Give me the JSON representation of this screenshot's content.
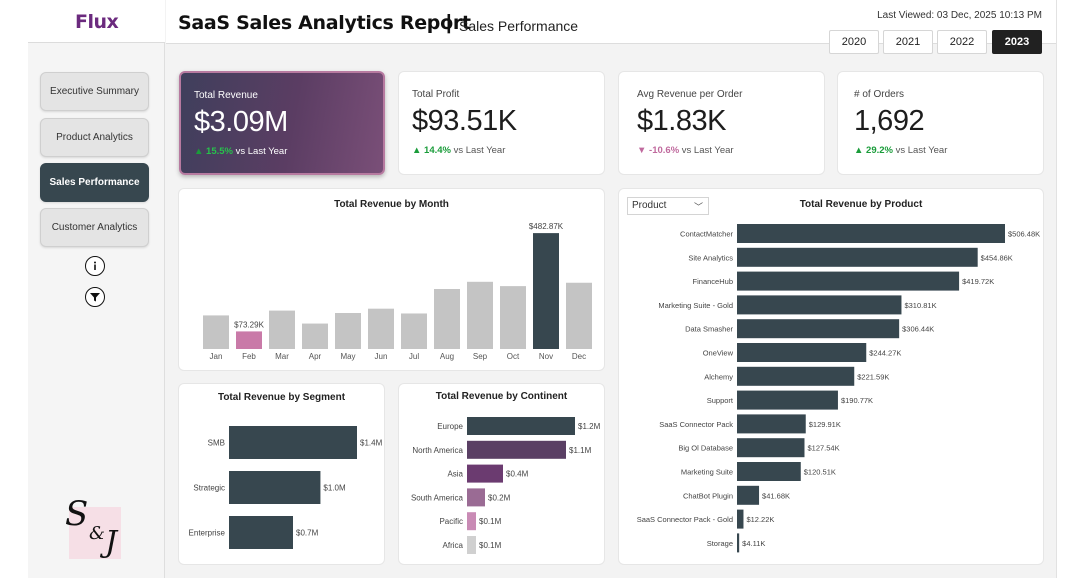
{
  "app": {
    "logo": "Flux"
  },
  "header": {
    "title": "SaaS Sales Analytics Report",
    "separator": "|",
    "subtitle": "Sales Performance",
    "last_viewed": "Last Viewed: 03 Dec, 2025 10:13 PM",
    "years": [
      "2020",
      "2021",
      "2022",
      "2023"
    ],
    "selected_year": "2023"
  },
  "sidebar": {
    "items": [
      {
        "label": "Executive Summary",
        "active": false
      },
      {
        "label": "Product Analytics",
        "active": false
      },
      {
        "label": "Sales Performance",
        "active": true
      },
      {
        "label": "Customer Analytics",
        "active": false
      }
    ],
    "info_icon": "info-icon",
    "filter_icon": "filter-icon",
    "signature": {
      "left": "S",
      "amp": "&",
      "right": "J"
    }
  },
  "kpis": [
    {
      "label": "Total Revenue",
      "value": "$3.09M",
      "delta": "15.5%",
      "direction": "up",
      "suffix": "vs Last Year"
    },
    {
      "label": "Total Profit",
      "value": "$93.51K",
      "delta": "14.4%",
      "direction": "up",
      "suffix": "vs Last Year"
    },
    {
      "label": "Avg Revenue per Order",
      "value": "$1.83K",
      "delta": "-10.6%",
      "direction": "down",
      "suffix": "vs Last Year"
    },
    {
      "label": "# of Orders",
      "value": "1,692",
      "delta": "29.2%",
      "direction": "up",
      "suffix": "vs Last Year"
    }
  ],
  "product_dropdown": {
    "value": "Product"
  },
  "colors": {
    "dark_slate": "#37474f",
    "grey_bar": "#c4c4c4",
    "pink_bar": "#c97aa8",
    "kpi_gradient_start": "#3f3f5c",
    "kpi_gradient_end": "#7a4f78",
    "up": "#1a9c3a",
    "down": "#c06a9e"
  },
  "chart_data": [
    {
      "id": "month",
      "type": "bar",
      "title": "Total Revenue by Month",
      "categories": [
        "Jan",
        "Feb",
        "Mar",
        "Apr",
        "May",
        "Jun",
        "Jul",
        "Aug",
        "Sep",
        "Oct",
        "Nov",
        "Dec"
      ],
      "values": [
        140,
        73.29,
        160,
        106,
        150,
        168,
        148,
        250,
        280,
        262,
        482.87,
        276
      ],
      "unit": "K",
      "labels": {
        "Feb": "$73.29K",
        "Nov": "$482.87K"
      },
      "highlight": {
        "Feb": "pink",
        "Nov": "dark"
      },
      "ylim": [
        0,
        500
      ]
    },
    {
      "id": "segment",
      "type": "bar",
      "orientation": "horizontal",
      "title": "Total Revenue by Segment",
      "categories": [
        "SMB",
        "Strategic",
        "Enterprise"
      ],
      "values": [
        1.4,
        1.0,
        0.7
      ],
      "labels": [
        "$1.4M",
        "$1.0M",
        "$0.7M"
      ],
      "xlim": [
        0,
        1.4
      ]
    },
    {
      "id": "continent",
      "type": "bar",
      "orientation": "horizontal",
      "title": "Total Revenue by Continent",
      "categories": [
        "Europe",
        "North America",
        "Asia",
        "South America",
        "Pacific",
        "Africa"
      ],
      "values": [
        1.2,
        1.1,
        0.4,
        0.2,
        0.1,
        0.1
      ],
      "labels": [
        "$1.2M",
        "$1.1M",
        "$0.4M",
        "$0.2M",
        "$0.1M",
        "$0.1M"
      ],
      "bar_colors": [
        "#37474f",
        "#5a3f64",
        "#6b3b70",
        "#9a6b94",
        "#c98bb5",
        "#d0d0d0"
      ],
      "xlim": [
        0,
        1.2
      ]
    },
    {
      "id": "product",
      "type": "bar",
      "orientation": "horizontal",
      "title": "Total Revenue by Product",
      "categories": [
        "ContactMatcher",
        "Site Analytics",
        "FinanceHub",
        "Marketing Suite - Gold",
        "Data Smasher",
        "OneView",
        "Alchemy",
        "Support",
        "SaaS Connector Pack",
        "Big Ol Database",
        "Marketing Suite",
        "ChatBot Plugin",
        "SaaS Connector Pack - Gold",
        "Storage"
      ],
      "values": [
        506.48,
        454.86,
        419.72,
        310.81,
        306.44,
        244.27,
        221.59,
        190.77,
        129.91,
        127.54,
        120.51,
        41.68,
        12.22,
        4.11
      ],
      "labels": [
        "$506.48K",
        "$454.86K",
        "$419.72K",
        "$310.81K",
        "$306.44K",
        "$244.27K",
        "$221.59K",
        "$190.77K",
        "$129.91K",
        "$127.54K",
        "$120.51K",
        "$41.68K",
        "$12.22K",
        "$4.11K"
      ],
      "unit": "K",
      "xlim": [
        0,
        506.48
      ]
    }
  ]
}
